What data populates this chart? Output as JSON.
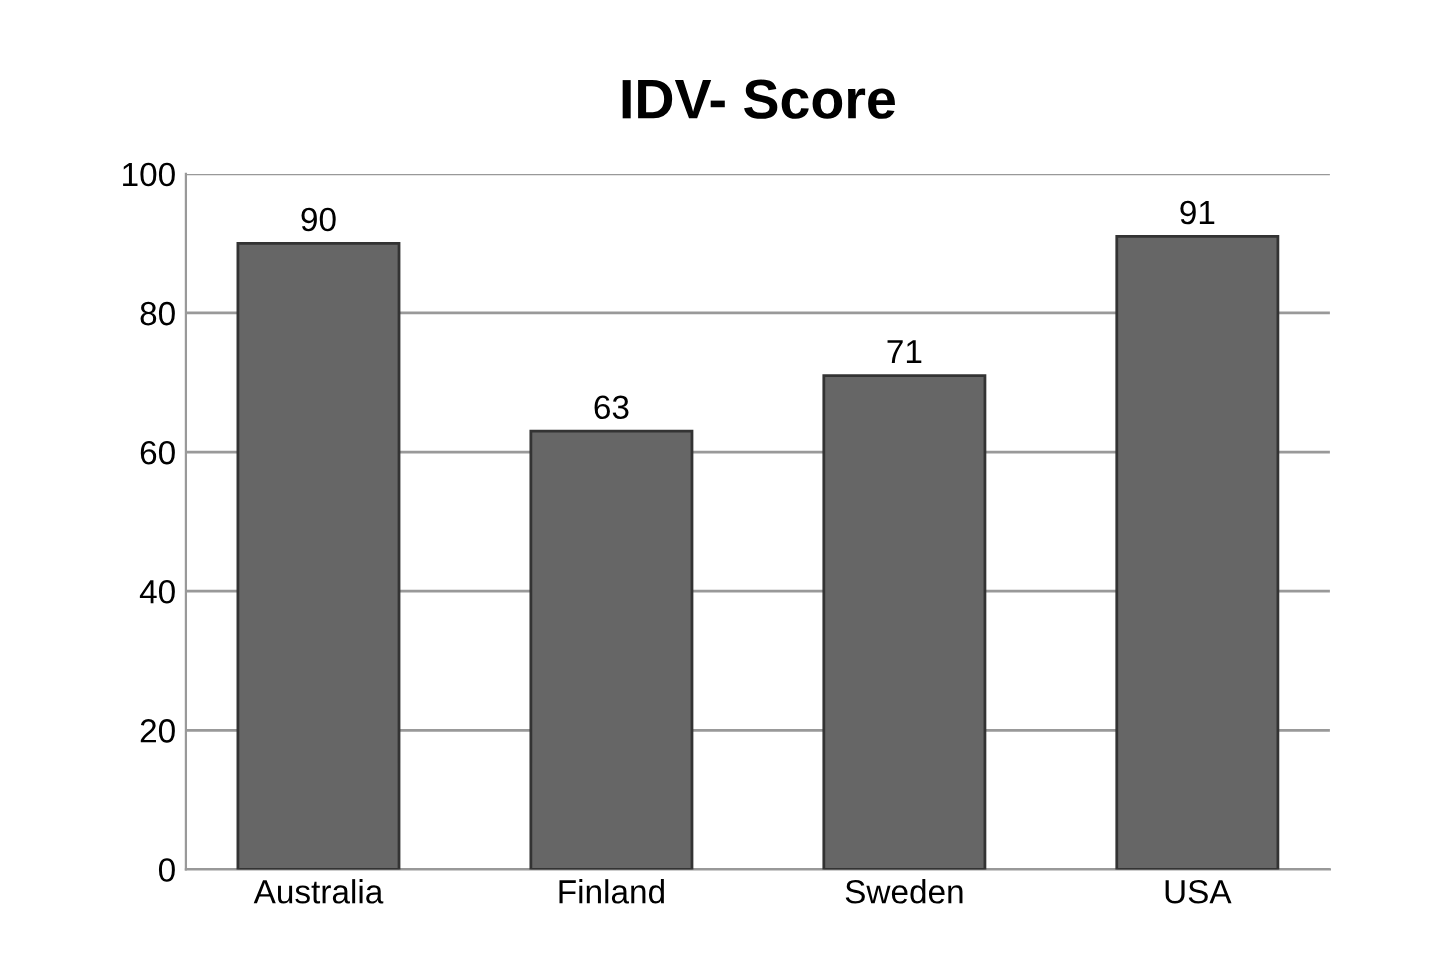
{
  "chart_data": {
    "type": "bar",
    "title": "IDV- Score",
    "categories": [
      "Australia",
      "Finland",
      "Sweden",
      "USA"
    ],
    "values": [
      90,
      63,
      71,
      91
    ],
    "color": "#666666",
    "ylim": [
      0,
      100
    ],
    "yticks": [
      0,
      20,
      40,
      60,
      80,
      100
    ],
    "grid": "y",
    "data_labels": true,
    "legend": false
  }
}
